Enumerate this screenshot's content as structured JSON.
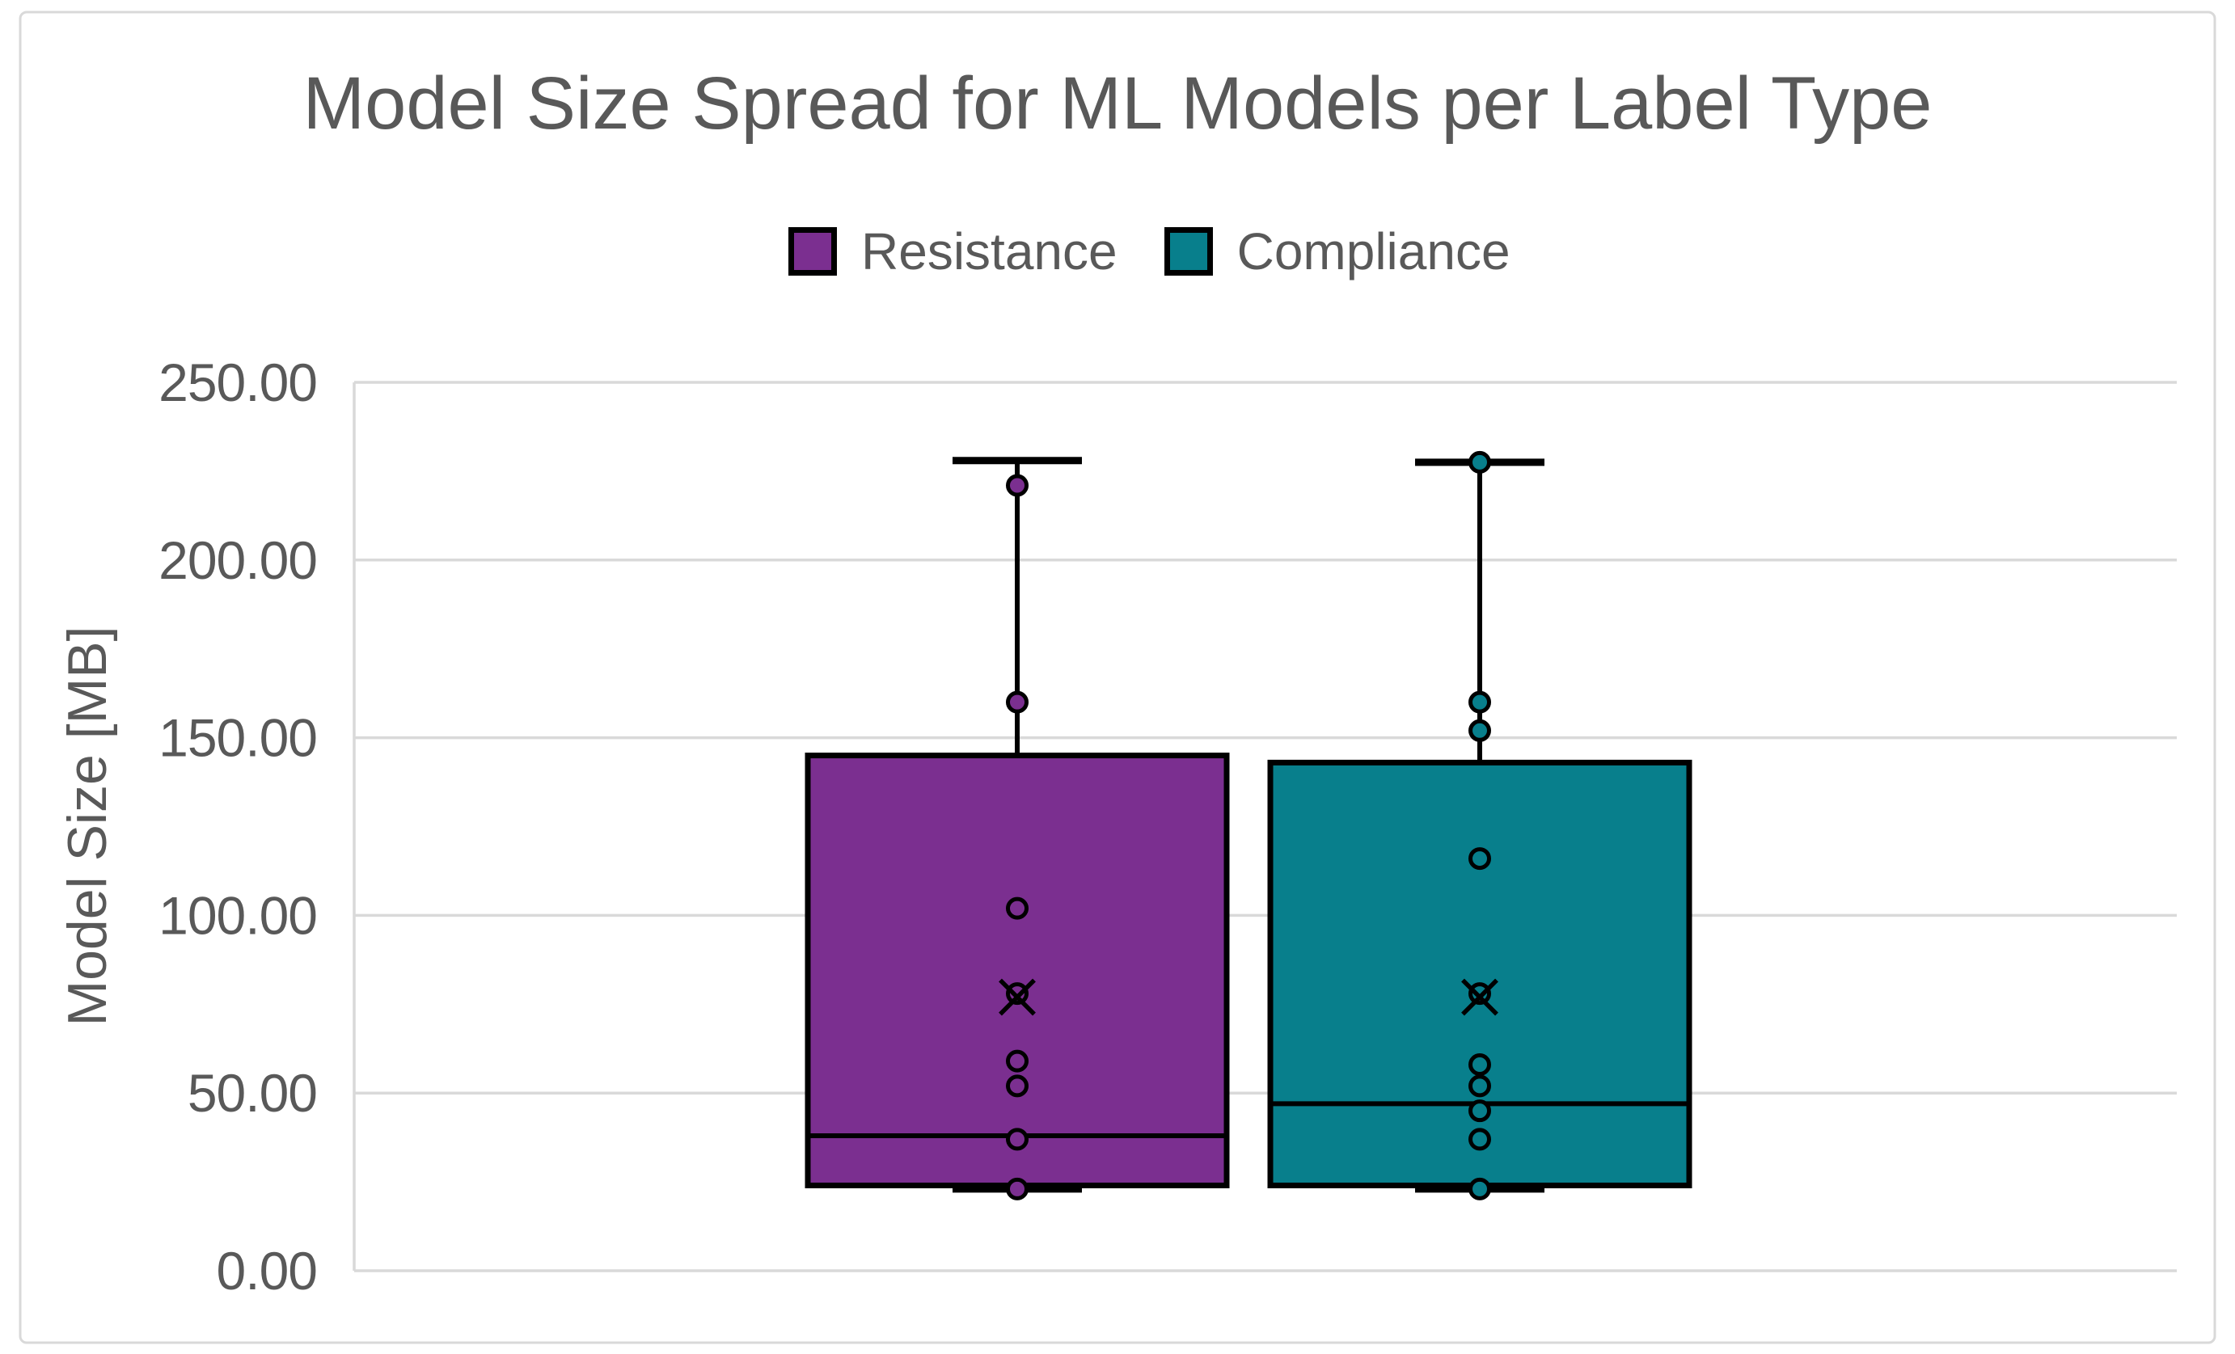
{
  "figure": {
    "background": "#FFFFFF",
    "border_color": "#D9D9D9"
  },
  "chart_data": {
    "type": "boxplot",
    "title": "Model Size Spread for ML Models per Label Type",
    "ylabel": "Model Size [MB]",
    "xlabel": "",
    "ylim": [
      0,
      250
    ],
    "grid": true,
    "legend_position": "top-center",
    "yticks": [
      {
        "value": 0,
        "label": "0.00"
      },
      {
        "value": 50,
        "label": "50.00"
      },
      {
        "value": 100,
        "label": "100.00"
      },
      {
        "value": 150,
        "label": "150.00"
      },
      {
        "value": 200,
        "label": "200.00"
      },
      {
        "value": 250,
        "label": "250.00"
      }
    ],
    "colors": {
      "text": "#595959",
      "gridline": "#D9D9D9",
      "axis_line": "#D9D9D9",
      "box_outline": "#000000"
    },
    "series": [
      {
        "name": "Resistance",
        "color": "#7B2F90",
        "box": {
          "q1": 24,
          "median": 38,
          "q3": 145,
          "whisker_low": 23,
          "whisker_high": 228,
          "mean": 77
        },
        "points": [
          221,
          160,
          102,
          78,
          59,
          52,
          37,
          23
        ]
      },
      {
        "name": "Compliance",
        "color": "#087F8C",
        "box": {
          "q1": 24,
          "median": 47,
          "q3": 143,
          "whisker_low": 23,
          "whisker_high": 227.5,
          "mean": 77
        },
        "points": [
          227.5,
          160,
          152,
          116,
          78,
          58,
          52,
          45,
          37,
          23
        ]
      }
    ]
  }
}
